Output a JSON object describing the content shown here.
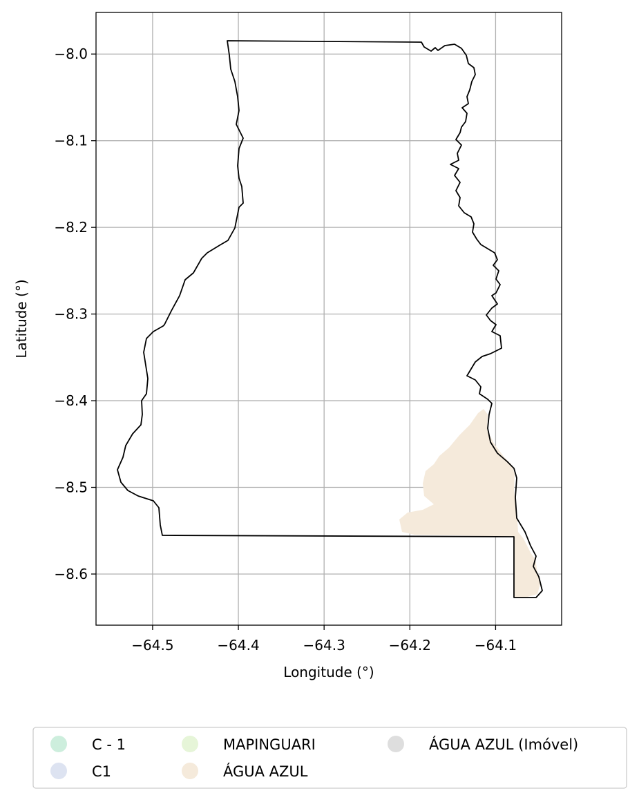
{
  "map": {
    "xlabel": "Longitude (°)",
    "ylabel": "Latitude (°)",
    "xlim": [
      -64.566,
      -64.023
    ],
    "ylim": [
      -8.659,
      -7.952
    ],
    "x_ticks": [
      -64.5,
      -64.4,
      -64.3,
      -64.2,
      -64.1
    ],
    "y_ticks": [
      -8.0,
      -8.1,
      -8.2,
      -8.3,
      -8.4,
      -8.5,
      -8.6
    ],
    "x_tick_labels": [
      "−64.5",
      "−64.4",
      "−64.3",
      "−64.2",
      "−64.1"
    ],
    "y_tick_labels": [
      "−8.0",
      "−8.1",
      "−8.2",
      "−8.3",
      "−8.4",
      "−8.5",
      "−8.6"
    ],
    "grid": true,
    "outline_color": "#000000",
    "grid_color": "#b0b0b0"
  },
  "legend": {
    "placement": "bottom-center",
    "items": [
      {
        "label": "C - 1",
        "color": "#cdeedd"
      },
      {
        "label": "C1",
        "color": "#dde3f1"
      },
      {
        "label": "MAPINGUARI",
        "color": "#e6f5d8"
      },
      {
        "label": "ÁGUA AZUL",
        "color": "#f5eadb"
      },
      {
        "label": "ÁGUA AZUL (Imóvel)",
        "color": "#dedede"
      }
    ]
  }
}
